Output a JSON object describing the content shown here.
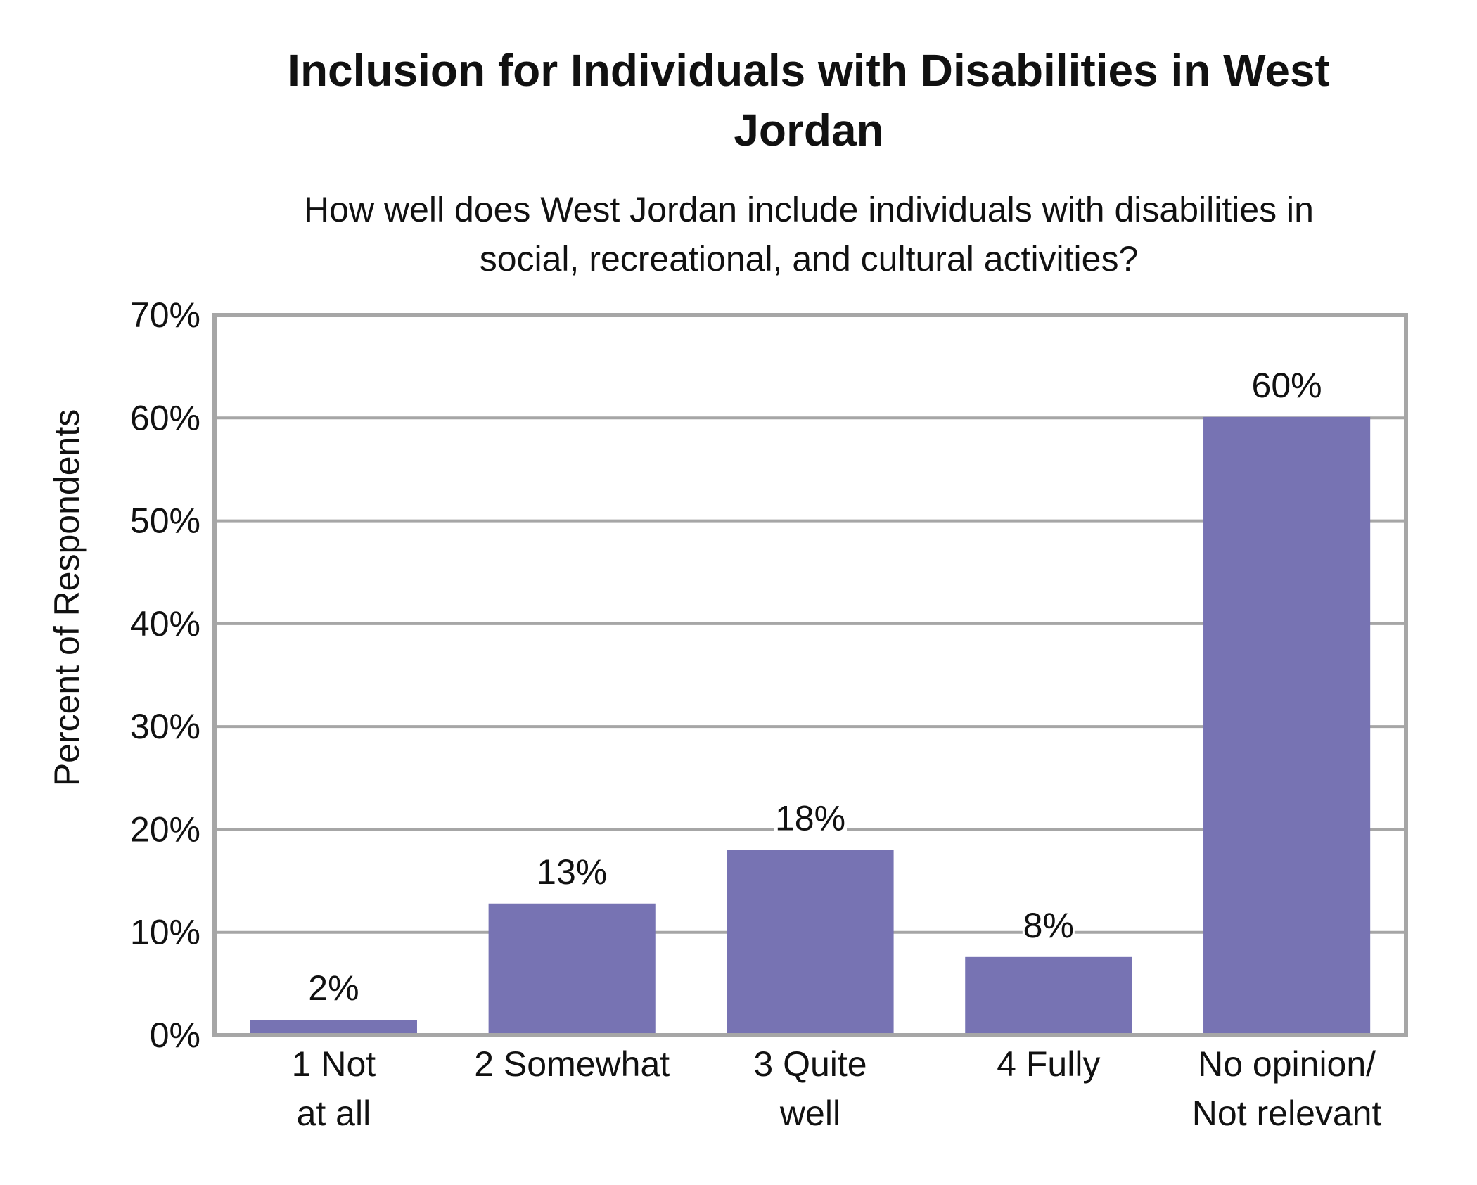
{
  "chart_data": {
    "type": "bar",
    "title": [
      "Inclusion for Individuals with Disabilities in West",
      "Jordan"
    ],
    "subtitle": [
      "How well does West Jordan include individuals with disabilities in",
      "social, recreational, and cultural activities?"
    ],
    "xlabel": "",
    "ylabel": "Percent of Respondents",
    "categories": [
      [
        "1 Not",
        "at all"
      ],
      [
        "2 Somewhat"
      ],
      [
        "3 Quite",
        "well"
      ],
      [
        "4 Fully"
      ],
      [
        "No opinion/",
        "Not relevant"
      ]
    ],
    "values": [
      1.5,
      12.8,
      18.0,
      7.6,
      60.1
    ],
    "data_labels": [
      "2%",
      "13%",
      "18%",
      "8%",
      "60%"
    ],
    "ylim": [
      0,
      70
    ],
    "yticks": [
      0,
      10,
      20,
      30,
      40,
      50,
      60,
      70
    ],
    "ytick_labels": [
      "0%",
      "10%",
      "20%",
      "30%",
      "40%",
      "50%",
      "60%",
      "70%"
    ],
    "grid": true,
    "legend": "none",
    "bar_color": "#7773b3",
    "axis_color": "#a6a6a6"
  }
}
